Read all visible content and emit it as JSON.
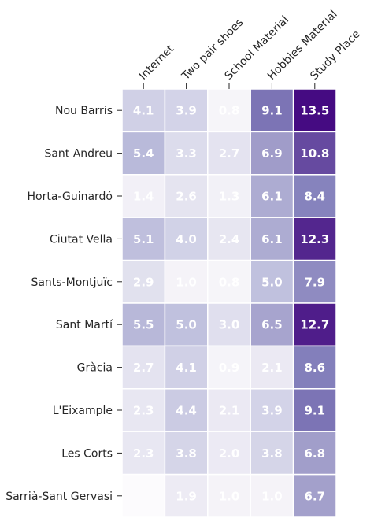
{
  "chart_data": {
    "type": "heatmap",
    "title": "",
    "xlabel": "",
    "ylabel": "",
    "columns": [
      "Internet",
      "Two pair shoes",
      "School Material",
      "Hobbies Material",
      "Study Place"
    ],
    "rows": [
      "Nou Barris",
      "Sant Andreu",
      "Horta-Guinardó",
      "Ciutat Vella",
      "Sants-Montjuïc",
      "Sant Martí",
      "Gràcia",
      "L'Eixample",
      "Les Corts",
      "Sarrià-Sant Gervasi"
    ],
    "values": [
      [
        4.1,
        3.9,
        0.8,
        9.1,
        13.5
      ],
      [
        5.4,
        3.3,
        2.7,
        6.9,
        10.8
      ],
      [
        1.4,
        2.6,
        1.3,
        6.1,
        8.4
      ],
      [
        5.1,
        4.0,
        2.4,
        6.1,
        12.3
      ],
      [
        2.9,
        1.0,
        0.8,
        5.0,
        7.9
      ],
      [
        5.5,
        5.0,
        3.0,
        6.5,
        12.7
      ],
      [
        2.7,
        4.1,
        0.9,
        2.1,
        8.6
      ],
      [
        2.3,
        4.4,
        2.1,
        3.9,
        9.1
      ],
      [
        2.3,
        3.8,
        2.0,
        3.8,
        6.8
      ],
      [
        0.0,
        1.9,
        1.0,
        1.0,
        6.7
      ]
    ],
    "value_labels": [
      [
        "4.1",
        "3.9",
        "0.8",
        "9.1",
        "13.5"
      ],
      [
        "5.4",
        "3.3",
        "2.7",
        "6.9",
        "10.8"
      ],
      [
        "1.4",
        "2.6",
        "1.3",
        "6.1",
        "8.4"
      ],
      [
        "5.1",
        "4.0",
        "2.4",
        "6.1",
        "12.3"
      ],
      [
        "2.9",
        "1.0",
        "0.8",
        "5.0",
        "7.9"
      ],
      [
        "5.5",
        "5.0",
        "3.0",
        "6.5",
        "12.7"
      ],
      [
        "2.7",
        "4.1",
        "0.9",
        "2.1",
        "8.6"
      ],
      [
        "2.3",
        "4.4",
        "2.1",
        "3.9",
        "9.1"
      ],
      [
        "2.3",
        "3.8",
        "2.0",
        "3.8",
        "6.8"
      ],
      [
        "",
        "1.9",
        "1.0",
        "1.0",
        "6.7"
      ]
    ],
    "colormap": "Purples",
    "color_range": [
      0,
      14
    ],
    "colors": {
      "low": "#fcfbfd",
      "mid": "#9e9ac8",
      "high": "#3f007d",
      "cell_border": "#ffffff",
      "label_text": "#ffffff",
      "axis_text": "#262626"
    },
    "grid": false,
    "legend": "none"
  }
}
